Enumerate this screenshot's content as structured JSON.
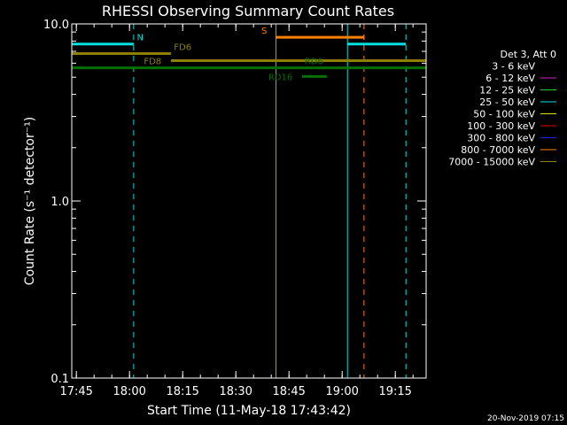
{
  "chart_data": {
    "type": "line",
    "title": "RHESSI Observing Summary Count Rates",
    "xlabel": "Start Time (11-May-18 17:43:42)",
    "ylabel": "Count Rate (s⁻¹ detector⁻¹)",
    "y_scale": "log",
    "ylim": [
      0.1,
      10.0
    ],
    "xlim": [
      "17:43:42",
      "19:23:42"
    ],
    "x_ticks": [
      "17:45",
      "18:00",
      "18:15",
      "18:30",
      "18:45",
      "19:00",
      "19:15"
    ],
    "y_ticks": [
      "0.1",
      "1.0",
      "10.0"
    ],
    "legend": {
      "placement": "right",
      "header": "Det 3, Att 0",
      "entries": [
        {
          "label": "3 - 6 keV",
          "color": "#000000"
        },
        {
          "label": "6 - 12 keV",
          "color": "#d020d0"
        },
        {
          "label": "12 - 25 keV",
          "color": "#20d020"
        },
        {
          "label": "25 - 50 keV",
          "color": "#00e0e0"
        },
        {
          "label": "50 - 100 keV",
          "color": "#e0e000"
        },
        {
          "label": "100 - 300 keV",
          "color": "#e00000"
        },
        {
          "label": "300 - 800 keV",
          "color": "#2020e0"
        },
        {
          "label": "800 - 7000 keV",
          "color": "#ff8000"
        },
        {
          "label": "7000 - 15000 keV",
          "color": "#8c8000"
        }
      ]
    },
    "vertical_lines": [
      {
        "time": "17:43:42",
        "color": "#00e0e0",
        "style": "solid"
      },
      {
        "time": "18:01:10",
        "color": "#00e0e0",
        "style": "dashed"
      },
      {
        "time": "18:41:20",
        "color": "#ff8000",
        "style": "solid"
      },
      {
        "time": "19:01:30",
        "color": "#00e0e0",
        "style": "solid"
      },
      {
        "time": "19:06:10",
        "color": "#ff8000",
        "style": "dashed"
      },
      {
        "time": "19:18:00",
        "color": "#00e0e0",
        "style": "dashed"
      }
    ],
    "flag_bars": [
      {
        "label": "N",
        "t0": "17:43:42",
        "t1": "18:01:10",
        "value": 7.7,
        "color": "#00e0e0",
        "label_at": "18:03:00",
        "label_side": "above"
      },
      {
        "label": "N",
        "t0": "19:01:30",
        "t1": "19:18:00",
        "value": 7.7,
        "color": "#00e0e0",
        "label_at": "",
        "label_side": "above"
      },
      {
        "label": "S",
        "t0": "18:41:20",
        "t1": "19:06:10",
        "value": 8.4,
        "color": "#ff8000",
        "label_at": "18:38:00",
        "label_side": "above",
        "end_caps": true
      },
      {
        "label": "FD6",
        "t0": "17:43:42",
        "t1": "18:11:40",
        "value": 6.8,
        "color": "#8c8000",
        "label_at": "18:15:00",
        "label_side": "above"
      },
      {
        "label": "FD8",
        "t0": "18:11:40",
        "t1": "19:23:42",
        "value": 6.2,
        "color": "#8c8000",
        "label_at": "18:09:00",
        "label_side": "left"
      },
      {
        "label": "RD6",
        "t0": "17:43:42",
        "t1": "19:23:42",
        "value": 5.65,
        "color": "#007000",
        "label_at": "18:52:00",
        "label_side": "above"
      },
      {
        "label": "RD16",
        "t0": "18:48:40",
        "t1": "18:55:40",
        "value": 5.05,
        "color": "#007000",
        "label_at": "18:46:00",
        "label_side": "left"
      }
    ],
    "footer_date": "20-Nov-2019 07:15"
  }
}
